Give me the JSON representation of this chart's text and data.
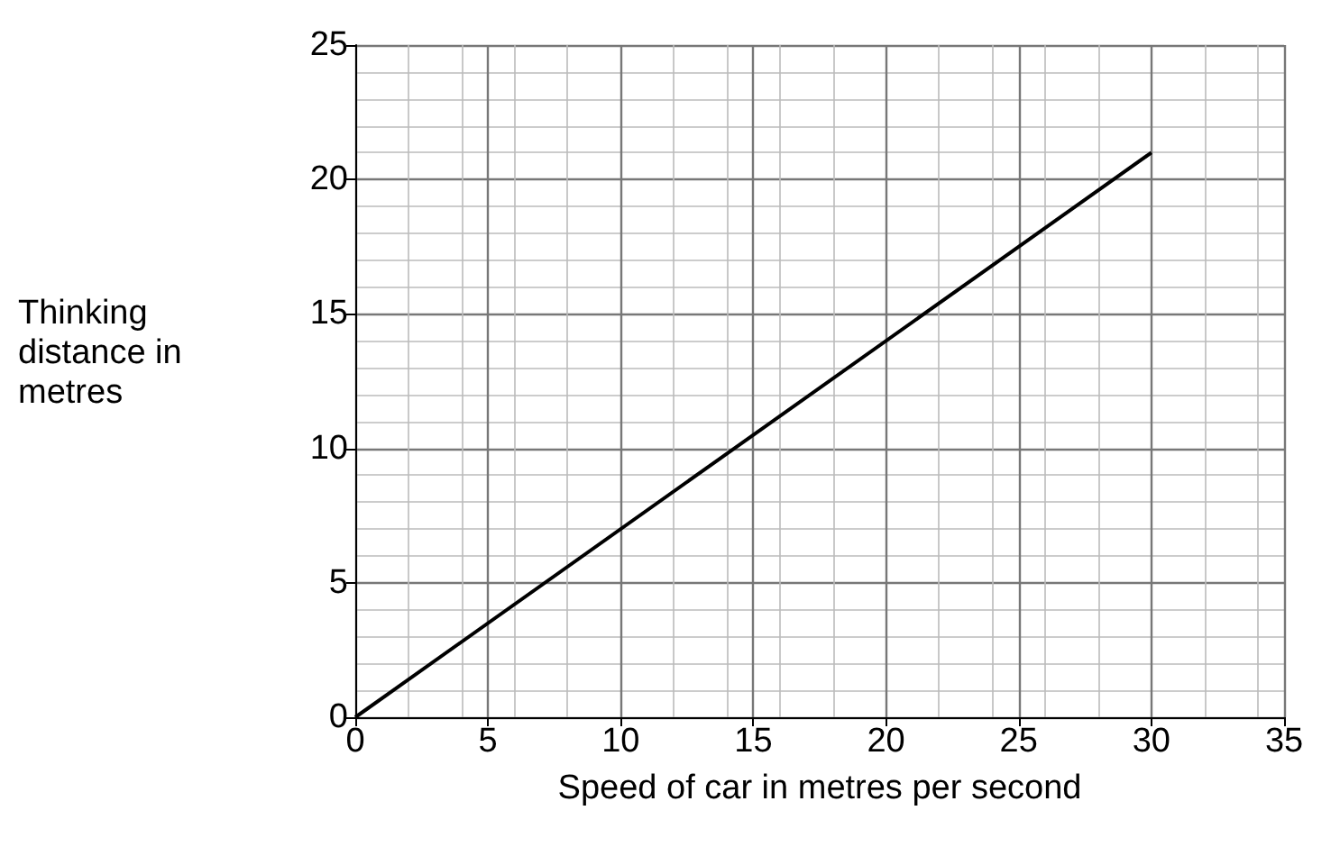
{
  "chart_data": {
    "type": "line",
    "xlabel": "Speed of car in metres per second",
    "ylabel": "Thinking distance in metres",
    "x": [
      0,
      30
    ],
    "series": [
      {
        "color": "#000000",
        "values": [
          0,
          21
        ]
      }
    ],
    "xlim": [
      0,
      35
    ],
    "xticks": [
      0,
      5,
      10,
      15,
      20,
      25,
      30,
      35
    ],
    "ylim": [
      0,
      25
    ],
    "yticks": [
      0,
      5,
      10,
      15,
      20,
      25
    ],
    "grid": true,
    "marker": "none",
    "line_style": "solid"
  }
}
